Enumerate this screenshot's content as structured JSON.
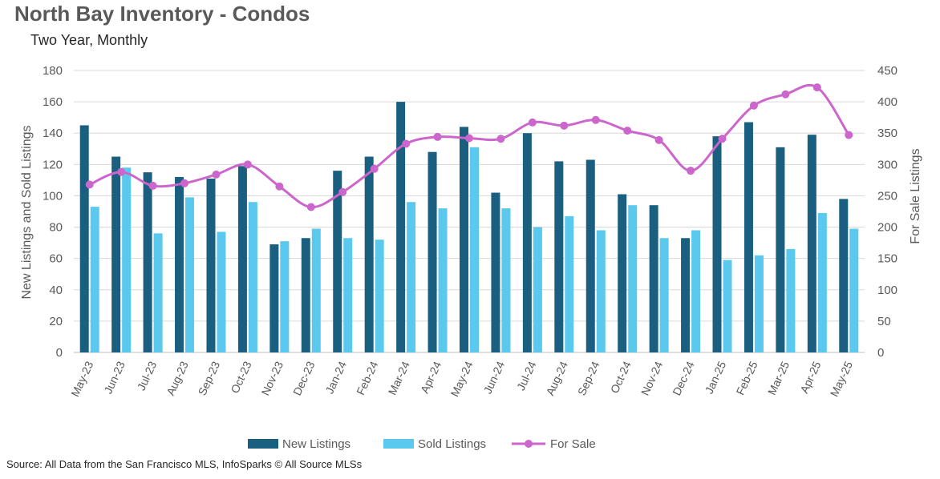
{
  "header": {
    "title": "North Bay Inventory - Condos",
    "subtitle": "Two Year, Monthly"
  },
  "footer": {
    "source": "Source: All Data from the San Francisco MLS, InfoSparks © All Source MLSs"
  },
  "colors": {
    "new_listings": "#1a5f80",
    "sold_listings": "#5bc8ee",
    "for_sale": "#cc66cc",
    "grid": "#d9d9d9"
  },
  "chart_data": {
    "type": "bar",
    "title": "North Bay Inventory - Condos",
    "subtitle": "Two Year, Monthly",
    "categories": [
      "May-23",
      "Jun-23",
      "Jul-23",
      "Aug-23",
      "Sep-23",
      "Oct-23",
      "Nov-23",
      "Dec-23",
      "Jan-24",
      "Feb-24",
      "Mar-24",
      "Apr-24",
      "May-24",
      "Jun-24",
      "Jul-24",
      "Aug-24",
      "Sep-24",
      "Oct-24",
      "Nov-24",
      "Dec-24",
      "Jan-25",
      "Feb-25",
      "Mar-25",
      "Apr-25",
      "May-25"
    ],
    "ylabel": "New Listings and Sold Listings",
    "y2label": "For Sale Listings",
    "ylim": [
      0,
      180
    ],
    "y2lim": [
      0,
      450
    ],
    "yticks": [
      "0",
      "20",
      "40",
      "60",
      "80",
      "100",
      "120",
      "140",
      "160",
      "180"
    ],
    "y2ticks": [
      "0",
      "50",
      "100",
      "150",
      "200",
      "250",
      "300",
      "350",
      "400",
      "450"
    ],
    "grid": true,
    "legend_position": "bottom",
    "series": [
      {
        "name": "New Listings",
        "type": "bar",
        "axis": "left",
        "values": [
          145,
          125,
          115,
          112,
          111,
          119,
          69,
          73,
          116,
          125,
          160,
          128,
          144,
          102,
          140,
          122,
          123,
          101,
          94,
          73,
          138,
          147,
          131,
          139,
          98
        ]
      },
      {
        "name": "Sold Listings",
        "type": "bar",
        "axis": "left",
        "values": [
          93,
          118,
          76,
          99,
          77,
          96,
          71,
          79,
          73,
          72,
          96,
          92,
          131,
          92,
          80,
          87,
          78,
          94,
          73,
          78,
          59,
          62,
          66,
          89,
          79
        ]
      },
      {
        "name": "For Sale",
        "type": "line",
        "axis": "right",
        "smooth": true,
        "values": [
          268,
          288,
          266,
          270,
          284,
          300,
          265,
          232,
          256,
          293,
          333,
          344,
          342,
          341,
          367,
          362,
          371,
          354,
          339,
          290,
          341,
          394,
          412,
          423,
          347
        ]
      }
    ]
  }
}
